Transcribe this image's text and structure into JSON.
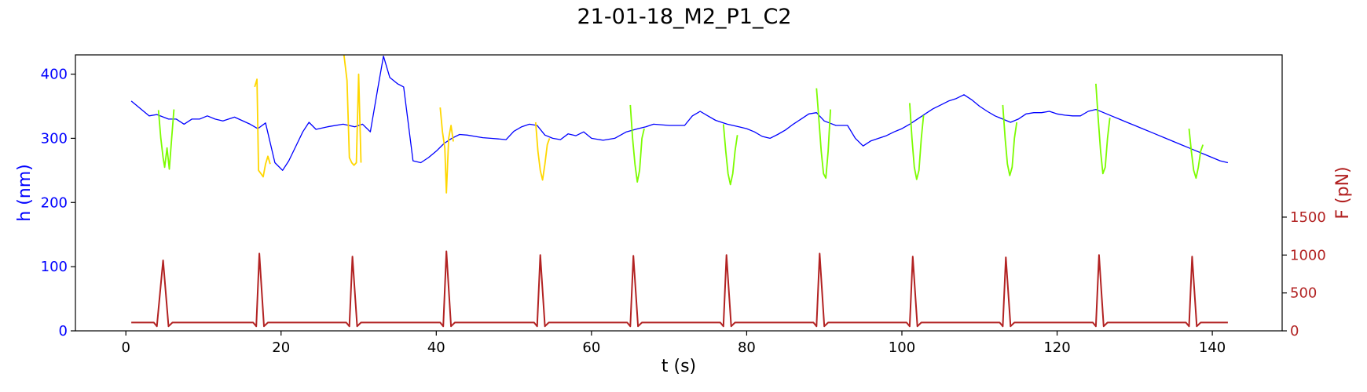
{
  "chart_data": {
    "type": "line",
    "title": "21-01-18_M2_P1_C2",
    "xlabel": "t (s)",
    "ylabel_left": "h (nm)",
    "ylabel_right": "F (pN)",
    "xlim": [
      -6.5,
      149
    ],
    "ylim_left": [
      0,
      430
    ],
    "ylim_right": [
      0,
      3640
    ],
    "x_ticks": [
      0,
      20,
      40,
      60,
      80,
      100,
      120,
      140
    ],
    "y_ticks_left": [
      0,
      100,
      200,
      300,
      400
    ],
    "y_ticks_right": [
      0,
      500,
      1000,
      1500
    ],
    "grid": false,
    "colors": {
      "height_baseline": "#0000ff",
      "height_green": "#7cfc00",
      "height_yellow": "#ffd700",
      "force": "#b22222",
      "left_axis": "#0000ff",
      "right_axis": "#b22222",
      "spine": "#000000"
    },
    "series": [
      {
        "axis": "left",
        "color": "#0000ff",
        "points": [
          [
            0.7,
            358
          ],
          [
            3,
            335
          ],
          [
            4,
            337
          ],
          [
            5.5,
            330
          ],
          [
            6.5,
            330
          ],
          [
            7.5,
            322
          ],
          [
            8.5,
            330
          ],
          [
            9.5,
            330
          ],
          [
            10.5,
            335
          ],
          [
            11.5,
            330
          ],
          [
            12.5,
            327
          ],
          [
            14,
            333
          ],
          [
            16,
            322
          ],
          [
            17,
            315
          ],
          [
            18,
            324
          ],
          [
            19.2,
            262
          ],
          [
            20.2,
            250
          ],
          [
            21,
            265
          ],
          [
            22,
            290
          ],
          [
            22.8,
            310
          ],
          [
            23.6,
            325
          ],
          [
            24.5,
            314
          ],
          [
            26,
            318
          ],
          [
            28,
            322
          ],
          [
            29.5,
            318
          ],
          [
            30.5,
            322
          ],
          [
            31.5,
            310
          ],
          [
            32.5,
            380
          ],
          [
            33.2,
            428
          ],
          [
            34,
            395
          ],
          [
            35,
            385
          ],
          [
            35.8,
            380
          ],
          [
            37,
            265
          ],
          [
            38,
            262
          ],
          [
            39,
            270
          ],
          [
            40,
            280
          ],
          [
            41,
            292
          ],
          [
            42,
            300
          ],
          [
            43,
            306
          ],
          [
            44,
            305
          ],
          [
            45,
            303
          ],
          [
            46,
            301
          ],
          [
            47,
            300
          ],
          [
            48,
            299
          ],
          [
            49,
            298
          ],
          [
            50,
            311
          ],
          [
            51,
            318
          ],
          [
            52,
            322
          ],
          [
            53,
            320
          ],
          [
            54,
            305
          ],
          [
            55,
            300
          ],
          [
            56,
            298
          ],
          [
            57,
            307
          ],
          [
            58,
            304
          ],
          [
            59,
            310
          ],
          [
            60,
            300
          ],
          [
            61.5,
            297
          ],
          [
            63,
            300
          ],
          [
            64.5,
            310
          ],
          [
            66,
            315
          ],
          [
            67,
            318
          ],
          [
            68,
            322
          ],
          [
            70,
            320
          ],
          [
            72,
            320
          ],
          [
            73,
            335
          ],
          [
            74,
            342
          ],
          [
            75,
            335
          ],
          [
            76,
            328
          ],
          [
            77.5,
            322
          ],
          [
            79,
            318
          ],
          [
            80,
            315
          ],
          [
            81,
            310
          ],
          [
            82,
            303
          ],
          [
            83,
            300
          ],
          [
            84,
            306
          ],
          [
            85,
            313
          ],
          [
            86,
            322
          ],
          [
            87,
            330
          ],
          [
            88,
            338
          ],
          [
            89,
            340
          ],
          [
            90,
            327
          ],
          [
            91.5,
            320
          ],
          [
            93,
            320
          ],
          [
            94,
            300
          ],
          [
            95,
            288
          ],
          [
            96,
            296
          ],
          [
            97,
            300
          ],
          [
            98,
            304
          ],
          [
            99,
            310
          ],
          [
            100,
            315
          ],
          [
            101,
            322
          ],
          [
            102,
            330
          ],
          [
            103,
            338
          ],
          [
            104,
            346
          ],
          [
            105,
            352
          ],
          [
            106,
            358
          ],
          [
            107,
            362
          ],
          [
            108,
            368
          ],
          [
            109,
            360
          ],
          [
            110,
            350
          ],
          [
            111,
            342
          ],
          [
            112,
            335
          ],
          [
            113,
            330
          ],
          [
            114,
            325
          ],
          [
            115,
            330
          ],
          [
            116,
            338
          ],
          [
            117,
            340
          ],
          [
            118,
            340
          ],
          [
            119,
            342
          ],
          [
            120,
            338
          ],
          [
            121,
            336
          ],
          [
            122,
            335
          ],
          [
            123,
            335
          ],
          [
            124,
            342
          ],
          [
            125,
            345
          ],
          [
            126,
            340
          ],
          [
            127,
            335
          ],
          [
            128,
            330
          ],
          [
            129,
            325
          ],
          [
            130,
            320
          ],
          [
            131,
            315
          ],
          [
            132,
            310
          ],
          [
            133,
            305
          ],
          [
            134,
            300
          ],
          [
            135,
            295
          ],
          [
            136,
            290
          ],
          [
            137,
            285
          ],
          [
            138,
            280
          ],
          [
            139,
            275
          ],
          [
            140,
            270
          ],
          [
            141,
            265
          ],
          [
            142,
            262
          ]
        ]
      },
      {
        "axis": "left",
        "color": "#7cfc00",
        "points": [
          [
            4.2,
            344
          ],
          [
            4.5,
            300
          ],
          [
            4.8,
            270
          ],
          [
            5.0,
            255
          ],
          [
            5.3,
            285
          ],
          [
            5.6,
            252
          ],
          [
            5.9,
            300
          ],
          [
            6.2,
            345
          ]
        ]
      },
      {
        "axis": "left",
        "color": "#ffd700",
        "points": [
          [
            16.6,
            380
          ],
          [
            16.9,
            392
          ],
          [
            17.1,
            250
          ],
          [
            17.4,
            245
          ],
          [
            17.7,
            240
          ],
          [
            18.0,
            260
          ],
          [
            18.3,
            272
          ],
          [
            18.6,
            260
          ]
        ]
      },
      {
        "axis": "left",
        "color": "#ffd700",
        "points": [
          [
            28.1,
            430
          ],
          [
            28.5,
            390
          ],
          [
            28.8,
            270
          ],
          [
            29.1,
            262
          ],
          [
            29.4,
            258
          ],
          [
            29.7,
            262
          ],
          [
            30.0,
            400
          ],
          [
            30.3,
            262
          ]
        ]
      },
      {
        "axis": "left",
        "color": "#ffd700",
        "points": [
          [
            40.5,
            348
          ],
          [
            40.8,
            310
          ],
          [
            41.1,
            285
          ],
          [
            41.3,
            215
          ],
          [
            41.6,
            300
          ],
          [
            41.9,
            320
          ],
          [
            42.2,
            295
          ]
        ]
      },
      {
        "axis": "left",
        "color": "#ffd700",
        "points": [
          [
            52.8,
            325
          ],
          [
            53.1,
            280
          ],
          [
            53.4,
            250
          ],
          [
            53.7,
            235
          ],
          [
            54.0,
            260
          ],
          [
            54.3,
            290
          ],
          [
            54.6,
            300
          ]
        ]
      },
      {
        "axis": "left",
        "color": "#7cfc00",
        "points": [
          [
            65.0,
            352
          ],
          [
            65.3,
            300
          ],
          [
            65.6,
            260
          ],
          [
            65.9,
            232
          ],
          [
            66.2,
            250
          ],
          [
            66.5,
            300
          ],
          [
            66.8,
            315
          ]
        ]
      },
      {
        "axis": "left",
        "color": "#7cfc00",
        "points": [
          [
            77.0,
            322
          ],
          [
            77.3,
            280
          ],
          [
            77.6,
            245
          ],
          [
            77.9,
            228
          ],
          [
            78.2,
            245
          ],
          [
            78.5,
            280
          ],
          [
            78.8,
            305
          ]
        ]
      },
      {
        "axis": "left",
        "color": "#7cfc00",
        "points": [
          [
            89.0,
            378
          ],
          [
            89.3,
            330
          ],
          [
            89.6,
            280
          ],
          [
            89.9,
            245
          ],
          [
            90.2,
            238
          ],
          [
            90.5,
            280
          ],
          [
            90.8,
            345
          ]
        ]
      },
      {
        "axis": "left",
        "color": "#7cfc00",
        "points": [
          [
            101.0,
            355
          ],
          [
            101.3,
            300
          ],
          [
            101.6,
            255
          ],
          [
            101.9,
            236
          ],
          [
            102.2,
            250
          ],
          [
            102.5,
            300
          ],
          [
            102.8,
            336
          ]
        ]
      },
      {
        "axis": "left",
        "color": "#7cfc00",
        "points": [
          [
            113.0,
            352
          ],
          [
            113.3,
            300
          ],
          [
            113.6,
            260
          ],
          [
            113.9,
            242
          ],
          [
            114.2,
            255
          ],
          [
            114.5,
            300
          ],
          [
            114.8,
            325
          ]
        ]
      },
      {
        "axis": "left",
        "color": "#7cfc00",
        "points": [
          [
            125.0,
            385
          ],
          [
            125.3,
            330
          ],
          [
            125.6,
            280
          ],
          [
            125.9,
            245
          ],
          [
            126.2,
            255
          ],
          [
            126.5,
            300
          ],
          [
            126.8,
            332
          ]
        ]
      },
      {
        "axis": "left",
        "color": "#7cfc00",
        "points": [
          [
            137.0,
            315
          ],
          [
            137.3,
            280
          ],
          [
            137.6,
            250
          ],
          [
            137.9,
            238
          ],
          [
            138.2,
            255
          ],
          [
            138.5,
            280
          ],
          [
            138.8,
            290
          ]
        ]
      },
      {
        "axis": "right",
        "color": "#b22222",
        "points": [
          [
            0.7,
            110
          ],
          [
            3.6,
            110
          ],
          [
            4.0,
            60
          ],
          [
            4.8,
            930
          ],
          [
            5.5,
            60
          ],
          [
            6.0,
            110
          ],
          [
            16.4,
            110
          ],
          [
            16.8,
            60
          ],
          [
            17.2,
            1020
          ],
          [
            17.8,
            60
          ],
          [
            18.3,
            110
          ],
          [
            28.4,
            110
          ],
          [
            28.8,
            60
          ],
          [
            29.2,
            980
          ],
          [
            29.8,
            60
          ],
          [
            30.3,
            110
          ],
          [
            40.5,
            110
          ],
          [
            40.9,
            60
          ],
          [
            41.3,
            1050
          ],
          [
            41.9,
            60
          ],
          [
            42.4,
            110
          ],
          [
            52.6,
            110
          ],
          [
            53.0,
            60
          ],
          [
            53.4,
            1000
          ],
          [
            54.0,
            60
          ],
          [
            54.5,
            110
          ],
          [
            64.6,
            110
          ],
          [
            65.0,
            60
          ],
          [
            65.4,
            990
          ],
          [
            66.0,
            60
          ],
          [
            66.5,
            110
          ],
          [
            76.6,
            110
          ],
          [
            77.0,
            60
          ],
          [
            77.4,
            1000
          ],
          [
            78.0,
            60
          ],
          [
            78.5,
            110
          ],
          [
            88.6,
            110
          ],
          [
            89.0,
            60
          ],
          [
            89.4,
            1020
          ],
          [
            90.0,
            60
          ],
          [
            90.5,
            110
          ],
          [
            100.6,
            110
          ],
          [
            101.0,
            60
          ],
          [
            101.4,
            980
          ],
          [
            102.0,
            60
          ],
          [
            102.5,
            110
          ],
          [
            112.6,
            110
          ],
          [
            113.0,
            60
          ],
          [
            113.4,
            970
          ],
          [
            114.0,
            60
          ],
          [
            114.5,
            110
          ],
          [
            124.6,
            110
          ],
          [
            125.0,
            60
          ],
          [
            125.4,
            1000
          ],
          [
            126.0,
            60
          ],
          [
            126.5,
            110
          ],
          [
            136.6,
            110
          ],
          [
            137.0,
            60
          ],
          [
            137.4,
            980
          ],
          [
            138.0,
            60
          ],
          [
            138.5,
            110
          ],
          [
            142,
            110
          ]
        ]
      }
    ]
  }
}
